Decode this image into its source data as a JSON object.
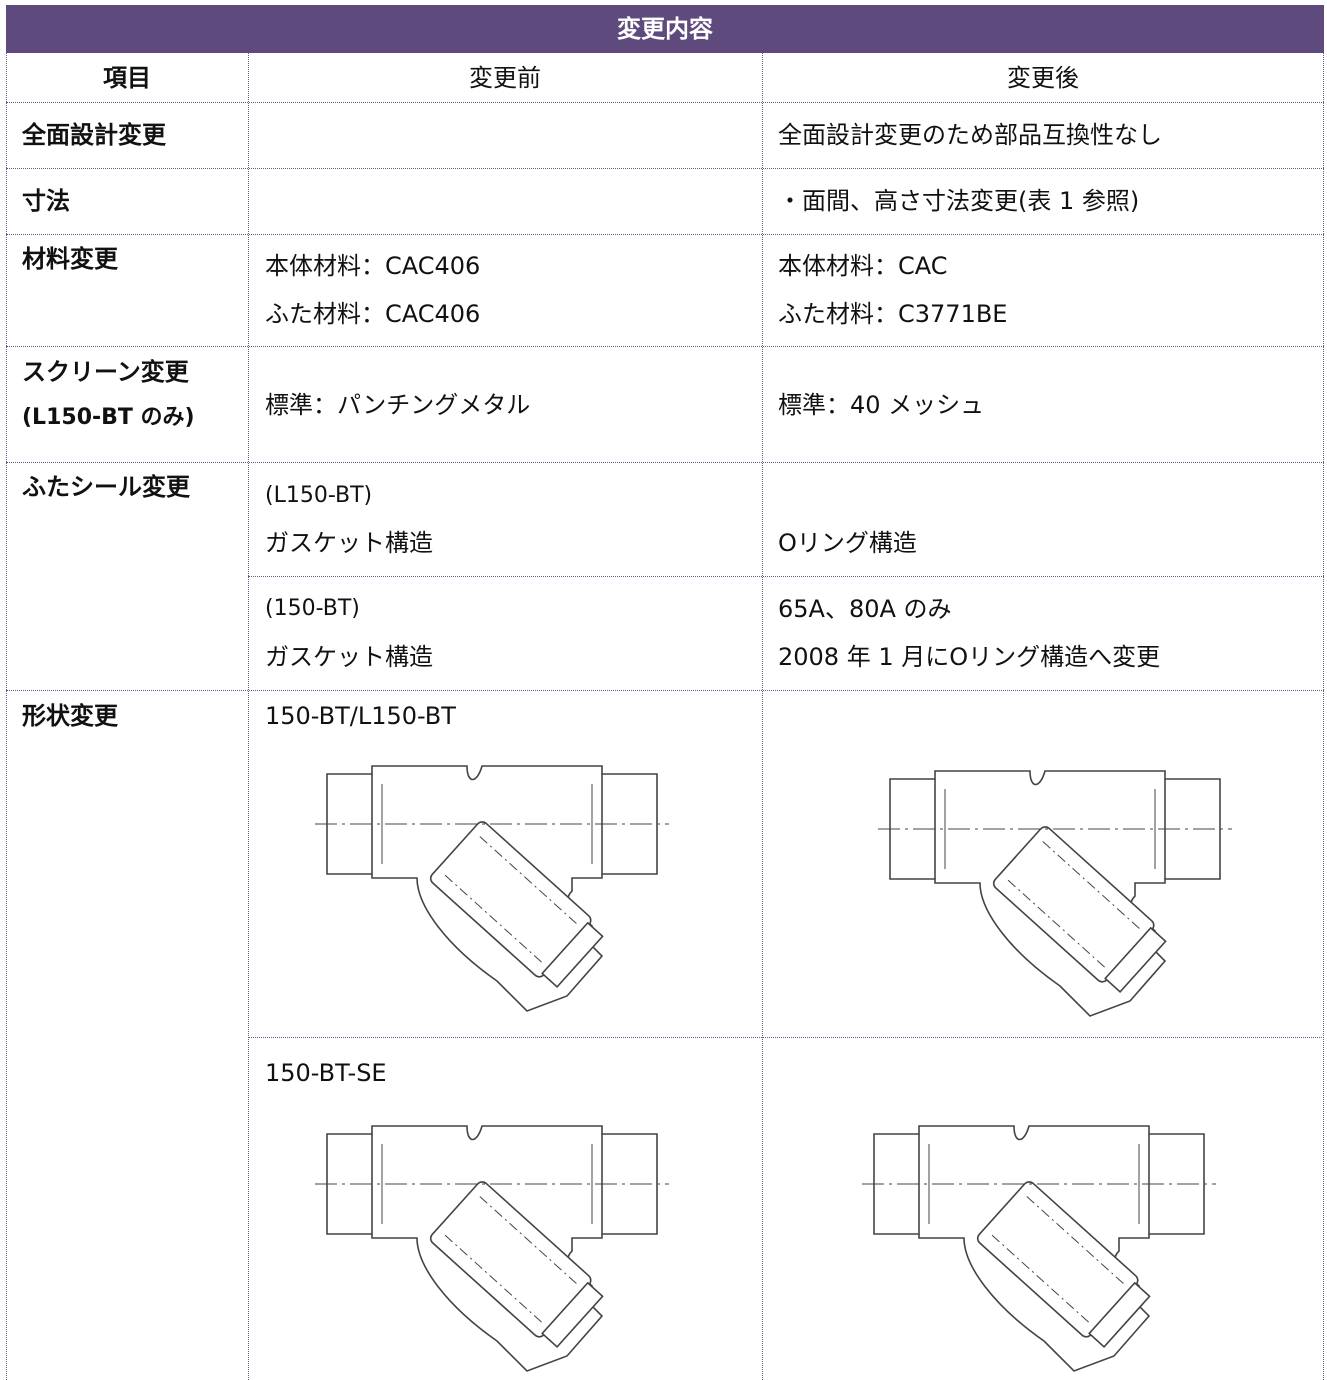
{
  "header": {
    "title": "変更内容"
  },
  "table": {
    "columns": [
      "項目",
      "変更前",
      "変更後"
    ],
    "rows": [
      {
        "item": [
          "全面設計変更"
        ],
        "after": [
          "全面設計変更のため部品互換性なし"
        ]
      },
      {
        "item": [
          "寸法"
        ],
        "after": [
          "・面間、高さ寸法変更(表 1 参照)"
        ]
      },
      {
        "item": [
          "材料変更"
        ],
        "before": [
          "本体材料：CAC406",
          "ふた材料：CAC406"
        ],
        "after": [
          "本体材料：CAC",
          "ふた材料：C3771BE"
        ]
      },
      {
        "item": [
          "スクリーン変更",
          "(L150-BT のみ)"
        ],
        "before": [
          "標準：パンチングメタル"
        ],
        "after": [
          "標準：40 メッシュ"
        ]
      },
      {
        "item": [
          "ふたシール変更"
        ],
        "before": [
          "(L150-BT)",
          "ガスケット構造"
        ],
        "after": [
          "Oリング構造"
        ]
      },
      {
        "before": [
          "(150-BT)",
          "ガスケット構造"
        ],
        "after": [
          "65A、80A のみ",
          "2008 年 1 月にOリング構造へ変更"
        ]
      },
      {
        "item": [
          "形状変更"
        ],
        "before": [
          "150-BT/L150-BT"
        ]
      },
      {
        "before": [
          "150-BT-SE"
        ]
      }
    ]
  }
}
